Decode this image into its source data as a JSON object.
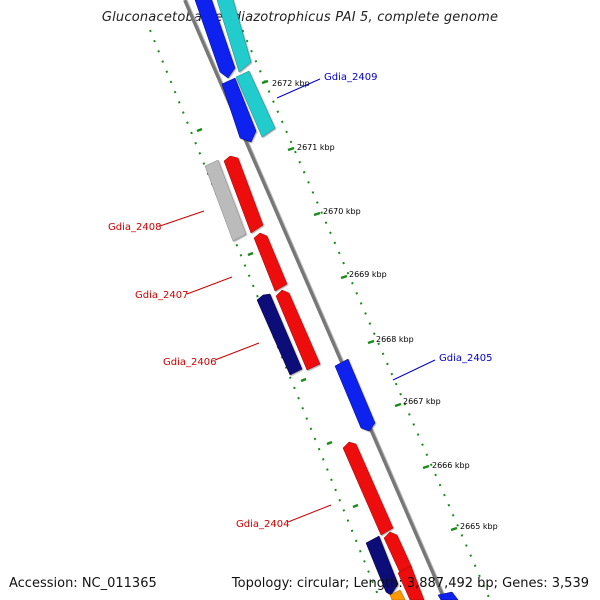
{
  "title": "Gluconacetobacter diazotrophicus PAI 5, complete genome",
  "footer": {
    "accession": "Accession: NC_011365",
    "stats": "Topology: circular; Length: 3,887,492 bp; Genes: 3,539"
  },
  "scale_ticks": [
    {
      "label": "2672 kbp"
    },
    {
      "label": "2671 kbp"
    },
    {
      "label": "2670 kbp"
    },
    {
      "label": "2669 kbp"
    },
    {
      "label": "2668 kbp"
    },
    {
      "label": "2667 kbp"
    },
    {
      "label": "2666 kbp"
    },
    {
      "label": "2665 kbp"
    }
  ],
  "gene_labels": [
    {
      "name": "Gdia_2409",
      "color": "#0000cc"
    },
    {
      "name": "Gdia_2408",
      "color": "#cc0000"
    },
    {
      "name": "Gdia_2407",
      "color": "#cc0000"
    },
    {
      "name": "Gdia_2406",
      "color": "#cc0000"
    },
    {
      "name": "Gdia_2405",
      "color": "#0000cc"
    },
    {
      "name": "Gdia_2404",
      "color": "#cc0000"
    }
  ],
  "colors": {
    "cds_red": "#ee1111",
    "cds_blue": "#1122ee",
    "cds_navy": "#0a0a7a",
    "cds_cyan": "#22cccc",
    "cds_gray": "#bbbbbb",
    "cds_orange": "#ff9900",
    "backbone": "#888888",
    "ruler": "#1a8a1a"
  }
}
